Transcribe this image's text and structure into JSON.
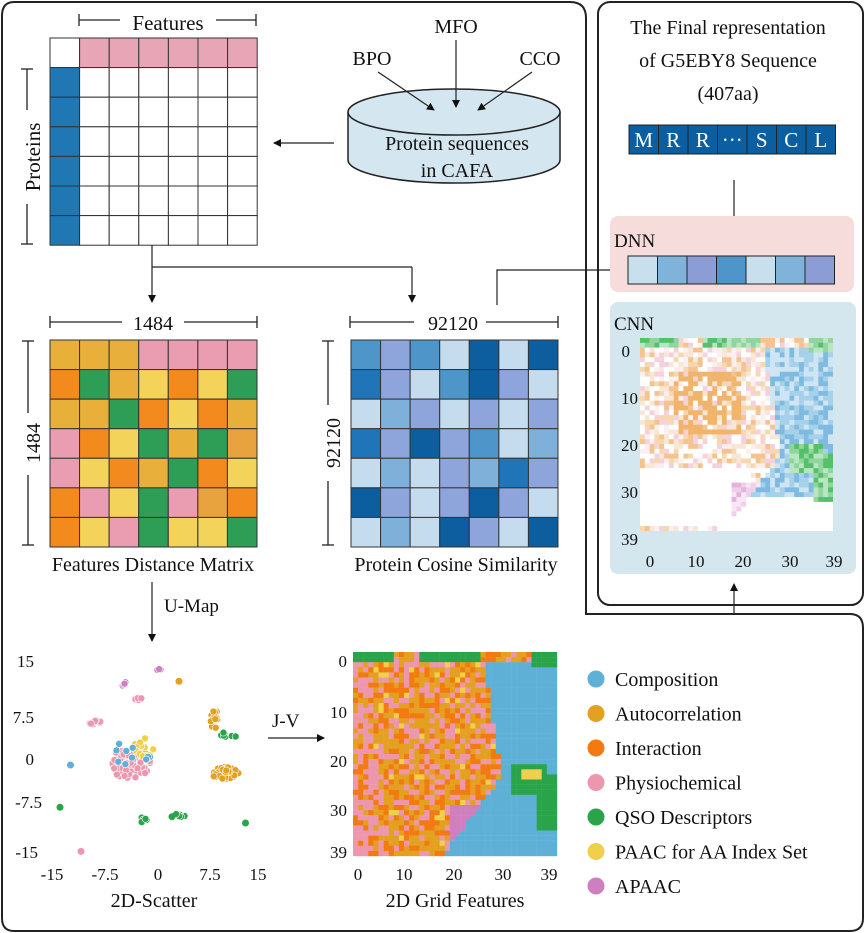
{
  "colors": {
    "blue": "#1f78b4",
    "pink": "#e8a5b6",
    "dark_blue": "#0b5fa0",
    "light_blue": "#c8dcec",
    "cylinder": "#d4e6ef",
    "dnn_bg": "#f7dcdc",
    "cnn_bg": "#d4e6ee",
    "composition": "#5fb0d6",
    "autocorrelation": "#e3a021",
    "interaction": "#f27a11",
    "physiochemical": "#ec97ad",
    "qso": "#2aa44a",
    "paac": "#f0d04a",
    "apaac": "#cf7fc0",
    "matrix_a_palette": [
      "#e8b03a",
      "#f28a1d",
      "#2e9e56",
      "#f3d35a",
      "#ea9cb1",
      "#e9a33e"
    ],
    "matrix_b_palette": [
      "#1f75b8",
      "#8ea5db",
      "#4e96c9",
      "#c5dcee",
      "#0d5e9e",
      "#7fb0da"
    ]
  },
  "top_matrix": {
    "features_label": "Features",
    "proteins_label": "Proteins"
  },
  "database": {
    "label_line1": "Protein sequences",
    "label_line2": "in CAFA",
    "inputs": [
      "BPO",
      "MFO",
      "CCO"
    ]
  },
  "feature_matrix": {
    "size_label_top": "1484",
    "size_label_side": "1484",
    "caption": "Features Distance Matrix",
    "cells": [
      [
        0,
        0,
        0,
        4,
        4,
        4,
        4
      ],
      [
        1,
        2,
        0,
        3,
        1,
        3,
        2
      ],
      [
        0,
        0,
        2,
        1,
        3,
        1,
        0
      ],
      [
        4,
        1,
        3,
        2,
        0,
        2,
        5
      ],
      [
        4,
        3,
        1,
        0,
        2,
        1,
        3
      ],
      [
        1,
        4,
        3,
        2,
        4,
        5,
        1
      ],
      [
        1,
        3,
        4,
        2,
        3,
        3,
        2
      ]
    ]
  },
  "similarity_matrix": {
    "size_label_top": "92120",
    "size_label_side": "92120",
    "caption": "Protein Cosine Similarity",
    "cells": [
      [
        2,
        1,
        2,
        3,
        4,
        3,
        4
      ],
      [
        0,
        1,
        3,
        2,
        4,
        1,
        3
      ],
      [
        3,
        5,
        1,
        3,
        1,
        3,
        1
      ],
      [
        0,
        1,
        4,
        1,
        2,
        3,
        5
      ],
      [
        3,
        5,
        3,
        1,
        5,
        0,
        1
      ],
      [
        4,
        1,
        3,
        1,
        4,
        1,
        3
      ],
      [
        3,
        5,
        3,
        4,
        1,
        3,
        4
      ]
    ]
  },
  "umap_label": "U-Map",
  "jv_label": "J-V",
  "scatter": {
    "caption": "2D-Scatter",
    "x_ticks": [
      "-15",
      "-7.5",
      "0",
      "7.5",
      "15"
    ],
    "y_ticks": [
      "15",
      "7.5",
      "0",
      "-7.5",
      "-15"
    ]
  },
  "grid": {
    "caption": "2D Grid Features",
    "x_ticks": [
      "0",
      "10",
      "20",
      "30",
      "39"
    ],
    "y_ticks": [
      "0",
      "10",
      "20",
      "30",
      "39"
    ]
  },
  "legend": [
    {
      "label": "Composition",
      "color": "#5fb0d6"
    },
    {
      "label": "Autocorrelation",
      "color": "#e3a021"
    },
    {
      "label": "Interaction",
      "color": "#f27a11"
    },
    {
      "label": "Physiochemical",
      "color": "#ec97ad"
    },
    {
      "label": "QSO Descriptors",
      "color": "#2aa44a"
    },
    {
      "label": "PAAC for AA Index Set",
      "color": "#f0d04a"
    },
    {
      "label": "APAAC",
      "color": "#cf7fc0"
    }
  ],
  "final": {
    "title_line1": "The Final representation",
    "title_line2": "of G5EBY8 Sequence",
    "title_line3": "(407aa)",
    "sequence": [
      "M",
      "R",
      "R",
      "···",
      "S",
      "C",
      "L"
    ],
    "dnn_label": "DNN",
    "dnn_cells": [
      "#c8dfee",
      "#7fb3da",
      "#8c9dd6",
      "#4e96c9",
      "#c8dfee",
      "#7fb3da",
      "#8c9dd6"
    ],
    "cnn_label": "CNN",
    "cnn_x_ticks": [
      "0",
      "10",
      "20",
      "30",
      "39"
    ],
    "cnn_y_ticks": [
      "0",
      "10",
      "20",
      "30",
      "39"
    ]
  }
}
